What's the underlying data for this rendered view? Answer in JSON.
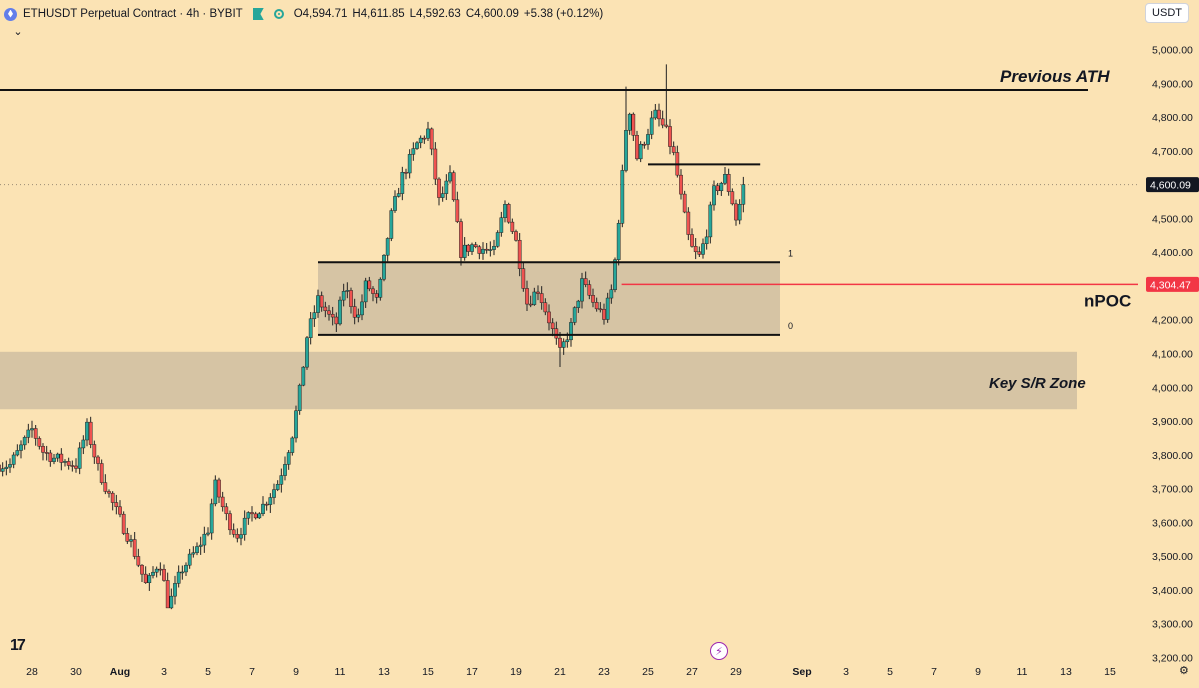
{
  "header": {
    "symbol": "ETHUSDT Perpetual Contract",
    "interval": "4h",
    "exchange": "BYBIT",
    "ohlc": {
      "open_label": "O",
      "open": "4,594.71",
      "high_label": "H",
      "high": "4,611.85",
      "low_label": "L",
      "low": "4,592.63",
      "close_label": "C",
      "close": "4,600.09",
      "change": "+5.38 (+0.12%)"
    }
  },
  "currency": "USDT",
  "icons": {
    "symbol_logo": "ethereum-icon",
    "flag": "flag-icon",
    "status": "market-status-icon",
    "collapse": "chevron-down-icon",
    "logo": "tradingview-logo-icon",
    "lightning": "lightning-icon",
    "settings": "gear-icon"
  },
  "glyphs": {
    "chevron": "⌄",
    "logo_text": "17",
    "lightning": "⚡",
    "gear": "⚙"
  },
  "colors": {
    "background": "#fbe3b4",
    "up": "#26a69a",
    "down": "#ef5350",
    "zone": "#d6c4a4",
    "npoc": "#f23645"
  },
  "chart_data": {
    "type": "candlestick",
    "interval": "4h",
    "y_axis": {
      "ticks": [
        3200,
        3300,
        3400,
        3500,
        3600,
        3700,
        3800,
        3900,
        4000,
        4100,
        4200,
        4300,
        4400,
        4500,
        4600,
        4700,
        4800,
        4900,
        5000
      ],
      "tick_labels": [
        "3,200.00",
        "3,300.00",
        "3,400.00",
        "3,500.00",
        "3,600.00",
        "3,700.00",
        "3,800.00",
        "3,900.00",
        "4,000.00",
        "4,100.00",
        "4,200.00",
        "4,300.00",
        "4,400.00",
        "4,500.00",
        "4,600.00",
        "4,700.00",
        "4,800.00",
        "4,900.00",
        "5,000.00"
      ],
      "range": [
        3180,
        5060
      ]
    },
    "x_axis": {
      "labels": [
        "28",
        "30",
        "Aug",
        "3",
        "5",
        "7",
        "9",
        "11",
        "13",
        "15",
        "17",
        "19",
        "21",
        "23",
        "25",
        "27",
        "29",
        "Sep",
        "3",
        "5",
        "7",
        "9",
        "11",
        "13",
        "15"
      ],
      "label_day_index": [
        -4,
        -2,
        0,
        2,
        4,
        6,
        8,
        10,
        12,
        14,
        16,
        18,
        20,
        22,
        24,
        26,
        28,
        31,
        33,
        35,
        37,
        39,
        41,
        43,
        45
      ],
      "note": "day index = days since Aug 1"
    },
    "grid": false,
    "current_price": {
      "value": 4600.09,
      "label": "4,600.09"
    },
    "close_path": [
      {
        "d": -5.0,
        "c": 3770
      },
      {
        "d": -4.0,
        "c": 3875
      },
      {
        "d": -3.5,
        "c": 3810
      },
      {
        "d": -3.0,
        "c": 3790
      },
      {
        "d": -2.5,
        "c": 3780
      },
      {
        "d": -2.0,
        "c": 3770
      },
      {
        "d": -1.5,
        "c": 3880
      },
      {
        "d": -1.0,
        "c": 3760
      },
      {
        "d": -0.3,
        "c": 3650
      },
      {
        "d": 0.5,
        "c": 3540
      },
      {
        "d": 1.2,
        "c": 3410
      },
      {
        "d": 1.8,
        "c": 3490
      },
      {
        "d": 2.2,
        "c": 3350
      },
      {
        "d": 2.8,
        "c": 3460
      },
      {
        "d": 3.5,
        "c": 3520
      },
      {
        "d": 4.0,
        "c": 3580
      },
      {
        "d": 4.3,
        "c": 3715
      },
      {
        "d": 4.8,
        "c": 3620
      },
      {
        "d": 5.3,
        "c": 3560
      },
      {
        "d": 5.8,
        "c": 3610
      },
      {
        "d": 6.5,
        "c": 3650
      },
      {
        "d": 7.2,
        "c": 3720
      },
      {
        "d": 7.8,
        "c": 3850
      },
      {
        "d": 8.2,
        "c": 4000
      },
      {
        "d": 8.5,
        "c": 4150
      },
      {
        "d": 9.0,
        "c": 4260
      },
      {
        "d": 9.8,
        "c": 4180
      },
      {
        "d": 10.2,
        "c": 4300
      },
      {
        "d": 10.8,
        "c": 4200
      },
      {
        "d": 11.2,
        "c": 4310
      },
      {
        "d": 11.7,
        "c": 4250
      },
      {
        "d": 12.3,
        "c": 4500
      },
      {
        "d": 12.8,
        "c": 4620
      },
      {
        "d": 13.5,
        "c": 4720
      },
      {
        "d": 14.0,
        "c": 4760
      },
      {
        "d": 14.5,
        "c": 4550
      },
      {
        "d": 15.0,
        "c": 4620
      },
      {
        "d": 15.5,
        "c": 4400
      },
      {
        "d": 16.0,
        "c": 4420
      },
      {
        "d": 16.5,
        "c": 4410
      },
      {
        "d": 17.0,
        "c": 4400
      },
      {
        "d": 17.5,
        "c": 4540
      },
      {
        "d": 18.0,
        "c": 4430
      },
      {
        "d": 18.5,
        "c": 4250
      },
      {
        "d": 19.0,
        "c": 4290
      },
      {
        "d": 19.5,
        "c": 4200
      },
      {
        "d": 20.0,
        "c": 4100
      },
      {
        "d": 20.5,
        "c": 4180
      },
      {
        "d": 21.0,
        "c": 4310
      },
      {
        "d": 21.5,
        "c": 4250
      },
      {
        "d": 22.0,
        "c": 4210
      },
      {
        "d": 22.4,
        "c": 4300
      },
      {
        "d": 22.8,
        "c": 4600
      },
      {
        "d": 23.1,
        "c": 4850
      },
      {
        "d": 23.5,
        "c": 4680
      },
      {
        "d": 24.0,
        "c": 4760
      },
      {
        "d": 24.3,
        "c": 4810
      },
      {
        "d": 24.8,
        "c": 4760
      },
      {
        "d": 25.2,
        "c": 4680
      },
      {
        "d": 25.5,
        "c": 4560
      },
      {
        "d": 25.9,
        "c": 4420
      },
      {
        "d": 26.3,
        "c": 4380
      },
      {
        "d": 26.6,
        "c": 4440
      },
      {
        "d": 27.0,
        "c": 4580
      },
      {
        "d": 27.5,
        "c": 4620
      },
      {
        "d": 27.8,
        "c": 4560
      },
      {
        "d": 28.0,
        "c": 4500
      },
      {
        "d": 28.4,
        "c": 4600
      }
    ],
    "ohlc_known": [
      {
        "d": 23.0,
        "h": 4890
      },
      {
        "d": 24.8,
        "h": 4956
      },
      {
        "d": 20.0,
        "l": 4060
      },
      {
        "d": 2.2,
        "l": 3350
      }
    ],
    "annotations": {
      "previous_ath": {
        "label": "Previous ATH",
        "price": 4880,
        "from_day": -6,
        "to_day": 44
      },
      "range_box": {
        "top": 4370,
        "bottom": 4155,
        "from_day": 9.0,
        "to_day": 30.0,
        "top_label": "1",
        "bottom_label": "0"
      },
      "short_level": {
        "price": 4660,
        "from_day": 24.0,
        "to_day": 29.1
      },
      "npoc": {
        "label": "nPOC",
        "price": 4304.47,
        "price_label": "4,304.47",
        "from_day": 22.8
      },
      "key_zone": {
        "label": "Key S/R Zone",
        "top": 4105,
        "bottom": 3935,
        "from_day": -6,
        "to_day": 43.5
      }
    }
  }
}
